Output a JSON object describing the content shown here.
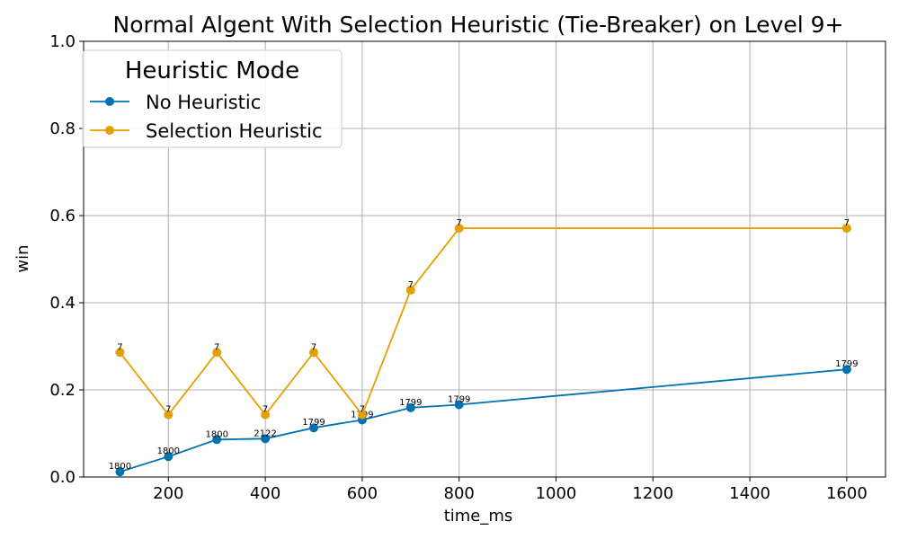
{
  "chart_data": {
    "type": "line",
    "title": "Normal Algent With Selection Heuristic (Tie-Breaker) on Level 9+",
    "xlabel": "time_ms",
    "ylabel": "win",
    "xlim": [
      25,
      1680
    ],
    "ylim": [
      0.0,
      1.0
    ],
    "xticks": [
      200,
      400,
      600,
      800,
      1000,
      1200,
      1400,
      1600
    ],
    "yticks": [
      0.0,
      0.2,
      0.4,
      0.6,
      0.8,
      1.0
    ],
    "xtick_labels": [
      "200",
      "400",
      "600",
      "800",
      "1000",
      "1200",
      "1400",
      "1600"
    ],
    "ytick_labels": [
      "0.0",
      "0.2",
      "0.4",
      "0.6",
      "0.8",
      "1.0"
    ],
    "grid": true,
    "legend": {
      "title": "Heuristic Mode",
      "placement": "top-left"
    },
    "series": [
      {
        "name": "No Heuristic",
        "color": "#0072b2",
        "x": [
          100,
          200,
          300,
          400,
          500,
          600,
          700,
          800,
          1600
        ],
        "y": [
          0.012,
          0.047,
          0.086,
          0.088,
          0.113,
          0.131,
          0.159,
          0.166,
          0.247
        ],
        "labels": [
          "1800",
          "1800",
          "1800",
          "2122",
          "1799",
          "1799",
          "1799",
          "1799",
          "1799"
        ]
      },
      {
        "name": "Selection Heuristic",
        "color": "#e69f00",
        "x": [
          100,
          200,
          300,
          400,
          500,
          600,
          700,
          800,
          1600
        ],
        "y": [
          0.286,
          0.143,
          0.286,
          0.143,
          0.286,
          0.143,
          0.429,
          0.571,
          0.571
        ],
        "labels": [
          "7",
          "7",
          "7",
          "7",
          "7",
          "7",
          "7",
          "7",
          "7"
        ]
      }
    ]
  }
}
